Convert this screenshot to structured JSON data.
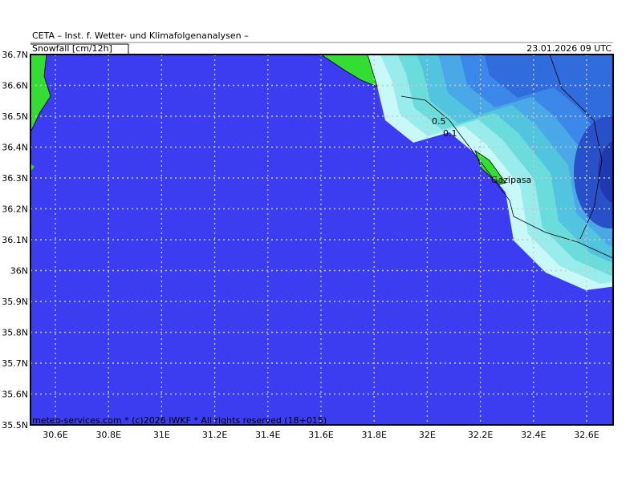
{
  "header": {
    "institute": "CETA – Inst. f. Wetter- und Klimafolgenanalysen –",
    "parameter": "Snowfall [cm/12h]",
    "valid_time": "23.01.2026 09 UTC"
  },
  "lat_labels": [
    "36.7N",
    "36.6N",
    "36.5N",
    "36.4N",
    "36.3N",
    "36.2N",
    "36.1N",
    "36N",
    "35.9N",
    "35.8N",
    "35.7N",
    "35.6N",
    "35.5N"
  ],
  "lon_labels": [
    "30.6E",
    "30.8E",
    "31E",
    "31.2E",
    "31.4E",
    "31.6E",
    "31.8E",
    "32E",
    "32.2E",
    "32.4E",
    "32.6E"
  ],
  "map_labels": {
    "contour_high": "0.5",
    "contour_low": "0.1",
    "city": "Gazipasa"
  },
  "footer": "meteo-services.com * (c)2026 IWKF * All rights reserved (18+015)"
}
